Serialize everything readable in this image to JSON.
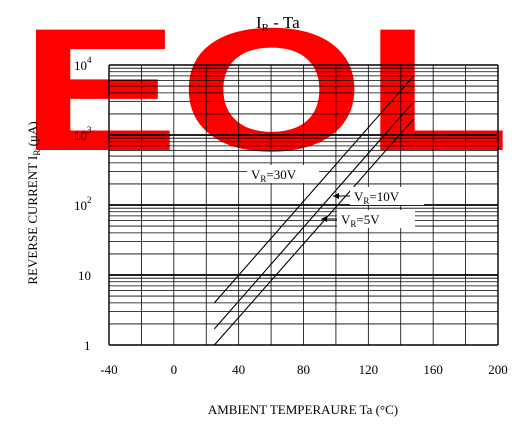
{
  "chart_data": {
    "type": "line",
    "title": {
      "main": "I",
      "sub": "R",
      "rest": "-    Ta"
    },
    "xlabel": "AMBIENT TEMPERAURE Ta  (°C)",
    "ylabel": "REVERSE CURRENT I",
    "ylabel_sub": "R",
    "ylabel_unit": "(μA)",
    "x_range": [
      -40,
      200
    ],
    "x_ticks": [
      "-40",
      "0",
      "40",
      "80",
      "120",
      "160",
      "200"
    ],
    "y_scale": "log",
    "y_range": [
      1,
      10000
    ],
    "y_ticks": [
      {
        "base": "1",
        "exp": ""
      },
      {
        "base": "10",
        "exp": ""
      },
      {
        "base": "10",
        "exp": "2"
      },
      {
        "base": "10",
        "exp": "3"
      },
      {
        "base": "10",
        "exp": "4"
      }
    ],
    "grid": true,
    "series": [
      {
        "name": "V_R=30V",
        "label_main": "V",
        "label_sub": "R",
        "label_rest": "=30V",
        "x": [
          25,
          148
        ],
        "y": [
          4,
          7000
        ]
      },
      {
        "name": "V_R=10V",
        "label_main": "V",
        "label_sub": "R",
        "label_rest": "=10V",
        "x": [
          25,
          148
        ],
        "y": [
          1.7,
          3000
        ]
      },
      {
        "name": "V_R=5V",
        "label_main": "V",
        "label_sub": "R",
        "label_rest": "=5V",
        "x": [
          25,
          148
        ],
        "y": [
          1.0,
          1700
        ]
      }
    ]
  },
  "watermark": {
    "text": "EOL",
    "color": "#ff0000"
  }
}
